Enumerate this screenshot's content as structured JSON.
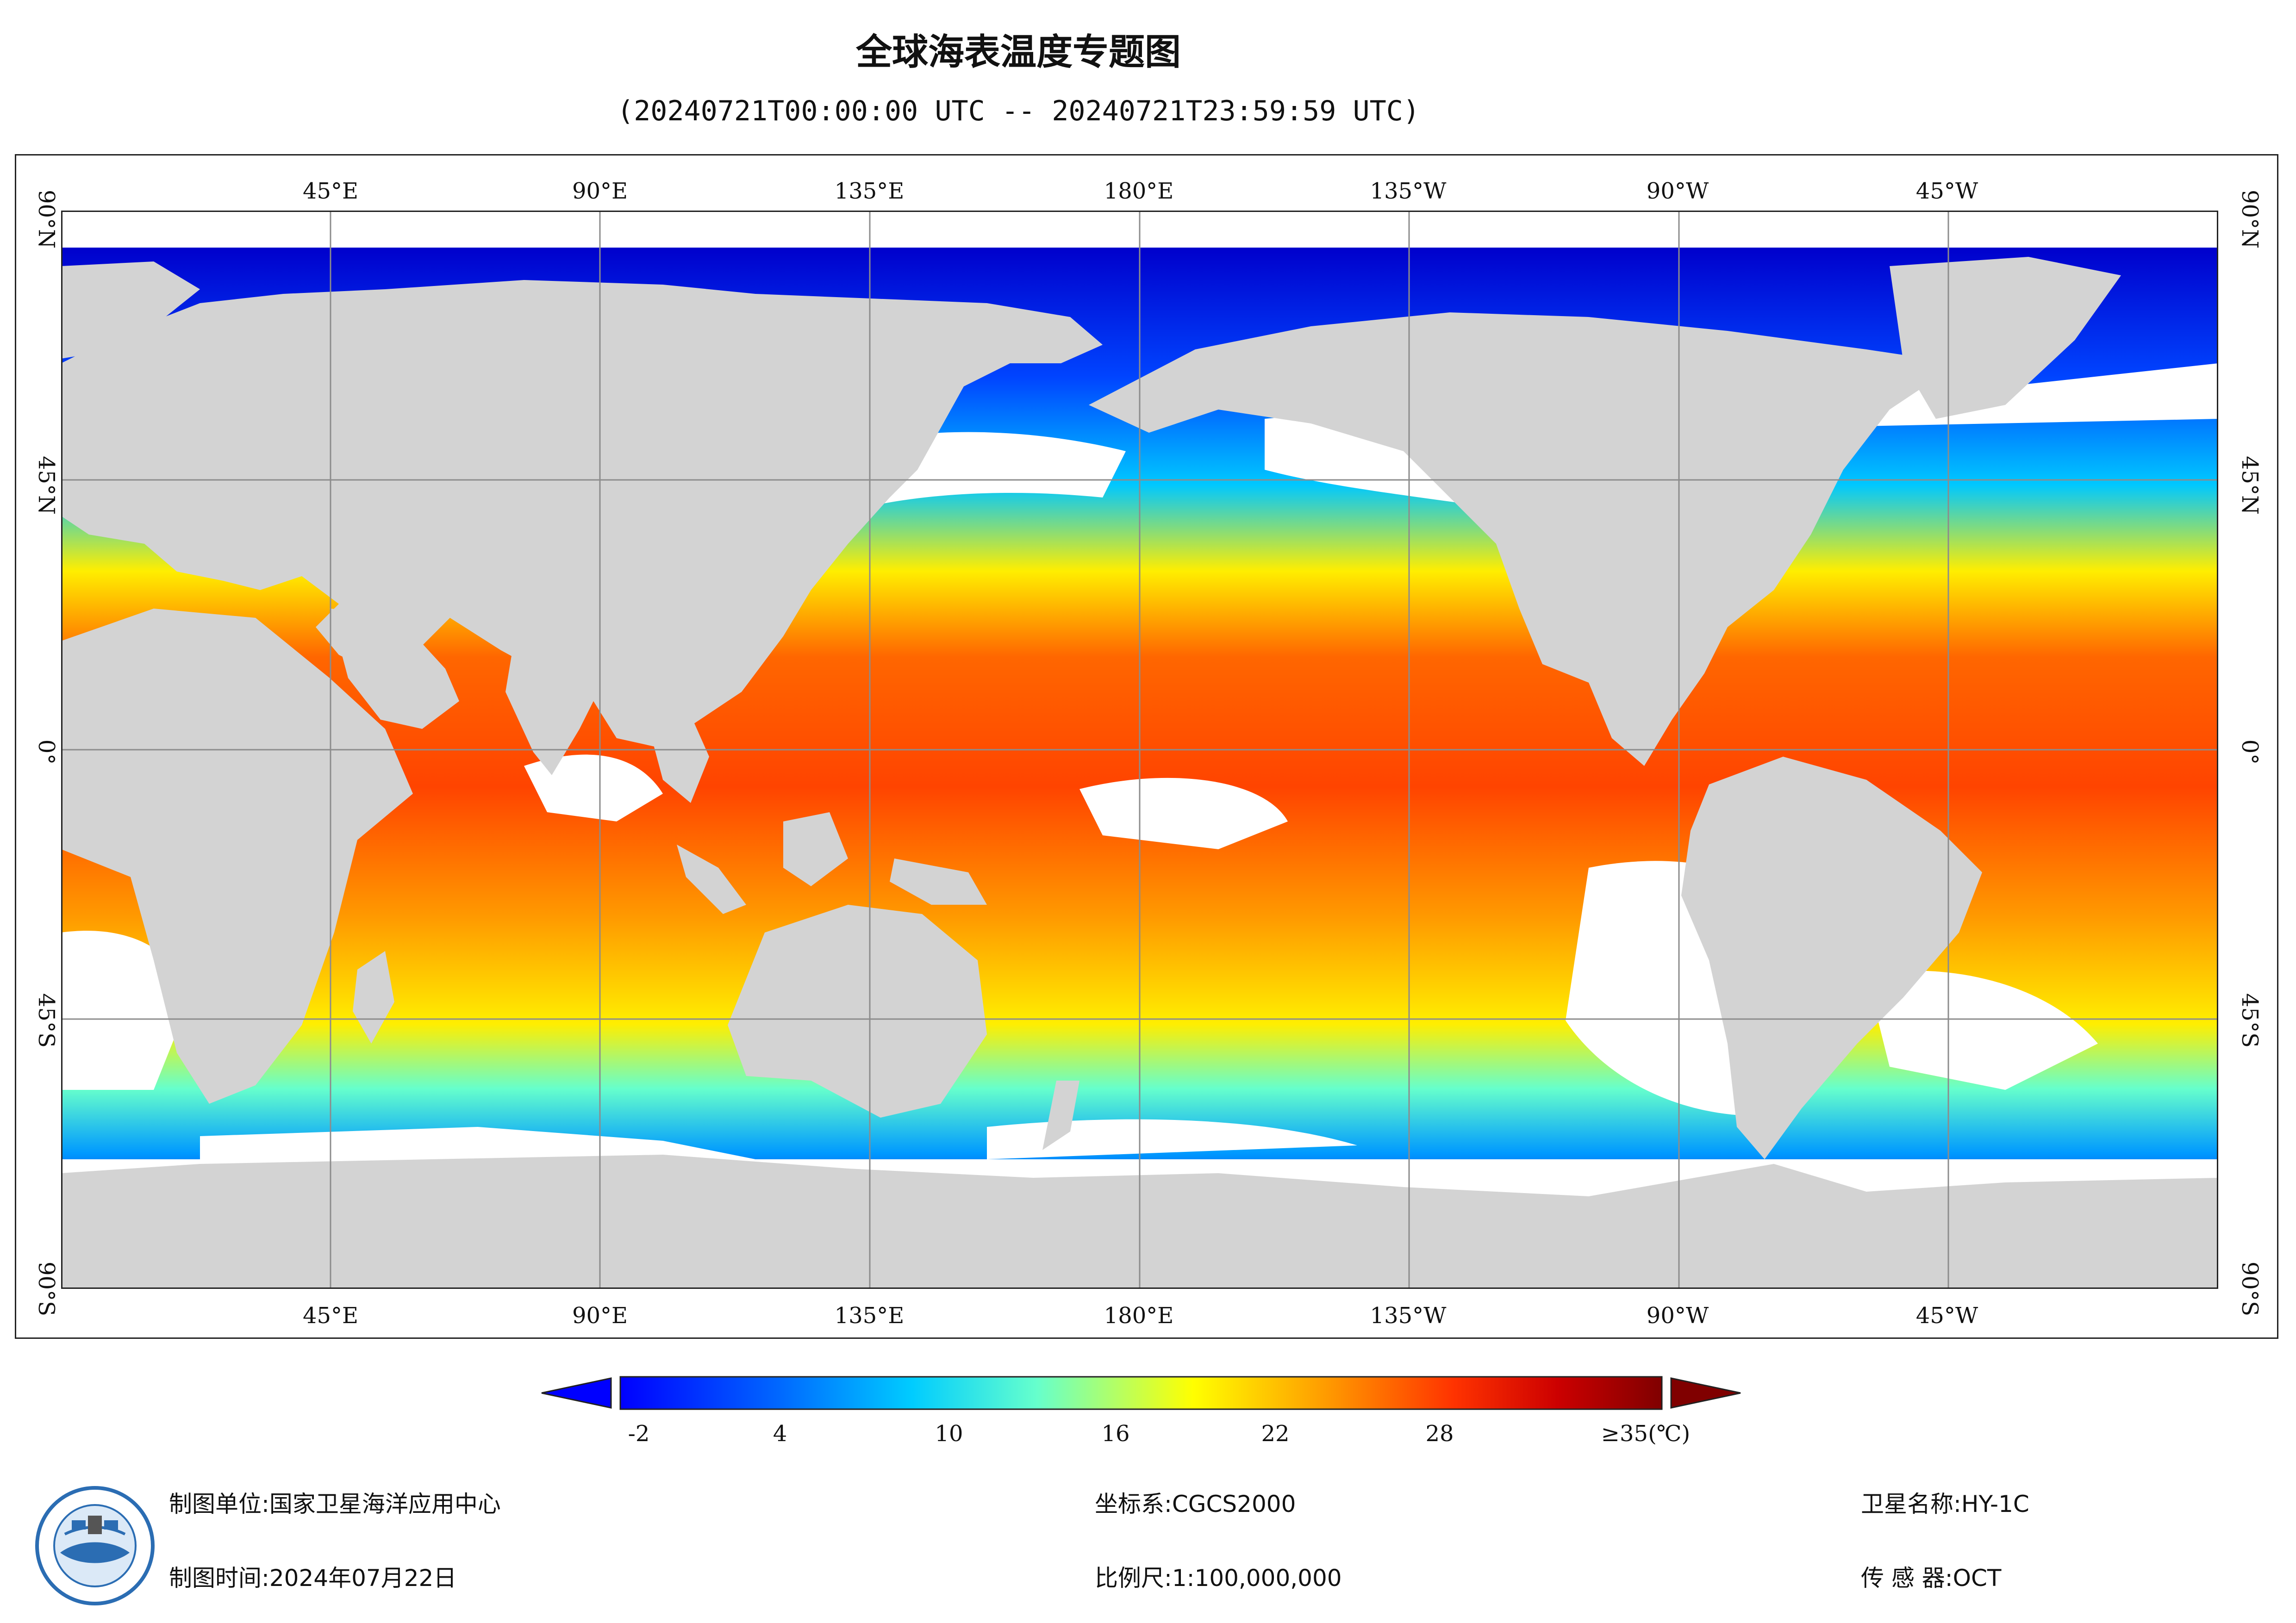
{
  "title": "全球海表温度专题图",
  "subtitle": "(20240721T00:00:00 UTC -- 20240721T23:59:59 UTC)",
  "map": {
    "projection": "equirectangular, centered 180°",
    "lon_labels": [
      "45°E",
      "90°E",
      "135°E",
      "180°E",
      "135°W",
      "90°W",
      "45°W"
    ],
    "lat_labels": [
      "90°N",
      "45°N",
      "0°",
      "45°S",
      "90°S"
    ],
    "colors": {
      "land": "#d3d3d3",
      "no_data": "#ffffff",
      "grid": "#8c8c8c",
      "frame": "#222222"
    }
  },
  "colorbar": {
    "ticks": [
      "-2",
      "4",
      "10",
      "16",
      "22",
      "28",
      "≥35(℃)"
    ],
    "colors": [
      "#0000ff",
      "#0066ff",
      "#00ccff",
      "#66ffcc",
      "#ffff00",
      "#ff9900",
      "#ff3300",
      "#cc0000",
      "#800000"
    ],
    "under_color": "#0000ff",
    "over_color": "#800000"
  },
  "footer": {
    "unit_label": "制图单位:国家卫星海洋应用中心",
    "time_label": "制图时间:2024年07月22日",
    "crs_label": "坐标系:CGCS2000",
    "scale_label": "比例尺:1:100,000,000",
    "satellite_label": "卫星名称:HY-1C",
    "sensor_label": "传 感 器:OCT"
  }
}
